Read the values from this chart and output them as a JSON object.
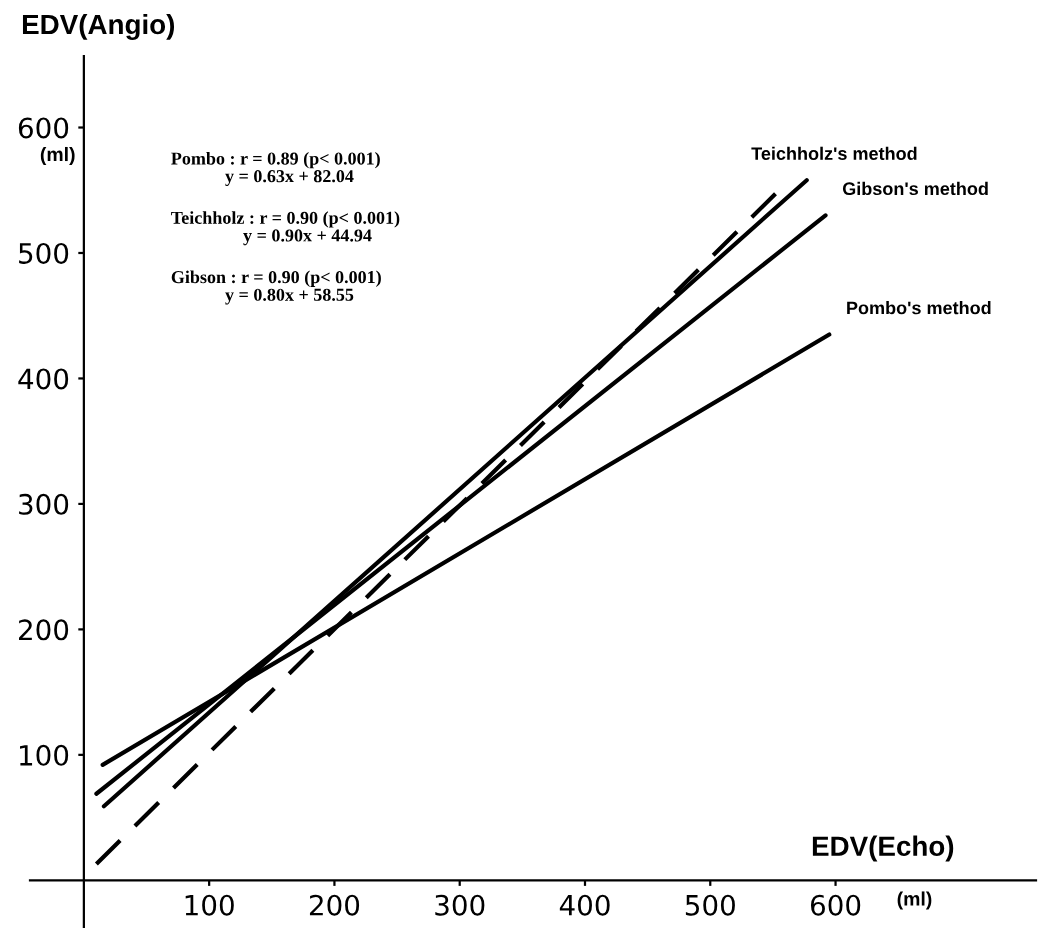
{
  "chart_data": {
    "type": "line",
    "ylabel": "EDV(Angio)",
    "xlabel": "EDV(Echo)",
    "xlim": [
      -43,
      760
    ],
    "ylim": [
      -38,
      657
    ],
    "xticks": [
      100,
      200,
      300,
      400,
      500,
      {
        "value": 600,
        "label": "600"
      }
    ],
    "yticks": [
      100,
      200,
      300,
      400,
      500,
      600
    ],
    "grid": false,
    "legend": false,
    "marker": "none",
    "series": [
      {
        "name": "Teichholz's method",
        "color": "#000000",
        "line_style": "solid",
        "x": [
          16,
          577
        ],
        "values": [
          59,
          558
        ]
      },
      {
        "name": "Gibson's method",
        "color": "#000000",
        "line_style": "solid",
        "x": [
          10,
          592
        ],
        "values": [
          69,
          530
        ]
      },
      {
        "name": "Pombo's method",
        "color": "#000000",
        "line_style": "solid",
        "x": [
          15,
          595
        ],
        "values": [
          92,
          435
        ]
      },
      {
        "color": "#000000",
        "line_style": "dashed",
        "x": [
          10,
          563
        ],
        "values": [
          13,
          558
        ]
      }
    ],
    "annotations": [
      "(ml)",
      "(ml)",
      "Pombo : r = 0.89 (p< 0.001)\n            y = 0.63x + 82.04",
      "Teichholz : r = 0.90 (p< 0.001)\n                y = 0.90x + 44.94",
      "Gibson : r = 0.90 (p< 0.001)\n            y = 0.80x + 58.55"
    ]
  }
}
